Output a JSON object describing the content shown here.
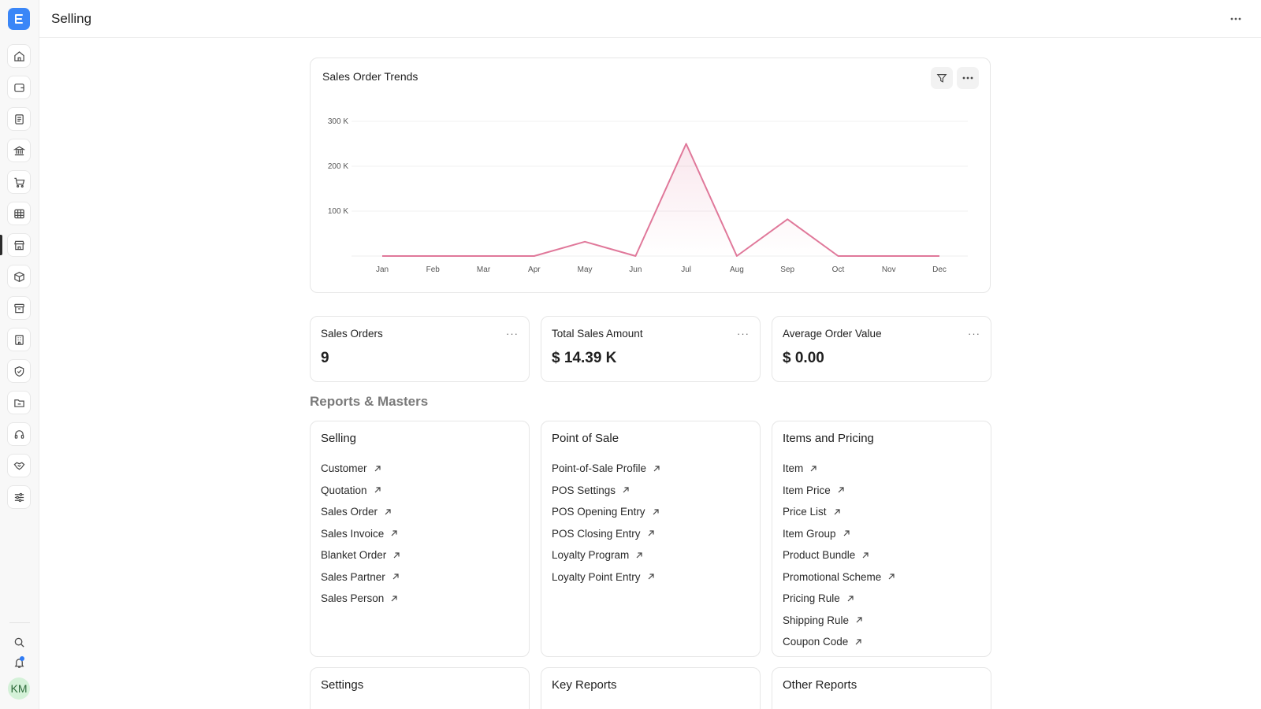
{
  "header": {
    "title": "Selling"
  },
  "sidebar": {
    "logo_letter": "E",
    "icons": [
      "home-icon",
      "wallet-icon",
      "document-icon",
      "bank-icon",
      "cart-icon",
      "table-icon",
      "store-icon",
      "package-icon",
      "archive-icon",
      "building-icon",
      "shield-icon",
      "folder-icon",
      "headset-icon",
      "handshake-icon",
      "sliders-icon"
    ],
    "active_index": 6,
    "avatar_initials": "KM"
  },
  "chart_card": {
    "title": "Sales Order Trends"
  },
  "chart_data": {
    "type": "line",
    "title": "Sales Order Trends",
    "categories": [
      "Jan",
      "Feb",
      "Mar",
      "Apr",
      "May",
      "Jun",
      "Jul",
      "Aug",
      "Sep",
      "Oct",
      "Nov",
      "Dec"
    ],
    "series": [
      {
        "values": [
          0,
          0,
          0,
          0,
          32000,
          0,
          250000,
          0,
          82000,
          0,
          0,
          0
        ]
      }
    ],
    "y_ticks": [
      "100 K",
      "200 K",
      "300 K"
    ],
    "y_tick_values": [
      100000,
      200000,
      300000
    ],
    "ylim": [
      0,
      300000
    ],
    "grid": true,
    "line_color": "#e0789a"
  },
  "stats": [
    {
      "label": "Sales Orders",
      "value": "9"
    },
    {
      "label": "Total Sales Amount",
      "value": "$ 14.39 K"
    },
    {
      "label": "Average Order Value",
      "value": "$ 0.00"
    }
  ],
  "stat_more": "···",
  "section_title": "Reports & Masters",
  "groups": {
    "selling": {
      "title": "Selling",
      "items": [
        "Customer",
        "Quotation",
        "Sales Order",
        "Sales Invoice",
        "Blanket Order",
        "Sales Partner",
        "Sales Person"
      ]
    },
    "pos": {
      "title": "Point of Sale",
      "items": [
        "Point-of-Sale Profile",
        "POS Settings",
        "POS Opening Entry",
        "POS Closing Entry",
        "Loyalty Program",
        "Loyalty Point Entry"
      ]
    },
    "items_pricing": {
      "title": "Items and Pricing",
      "items": [
        "Item",
        "Item Price",
        "Price List",
        "Item Group",
        "Product Bundle",
        "Promotional Scheme",
        "Pricing Rule",
        "Shipping Rule",
        "Coupon Code"
      ]
    },
    "settings": {
      "title": "Settings"
    },
    "key_reports": {
      "title": "Key Reports"
    },
    "other_reports": {
      "title": "Other Reports"
    }
  }
}
